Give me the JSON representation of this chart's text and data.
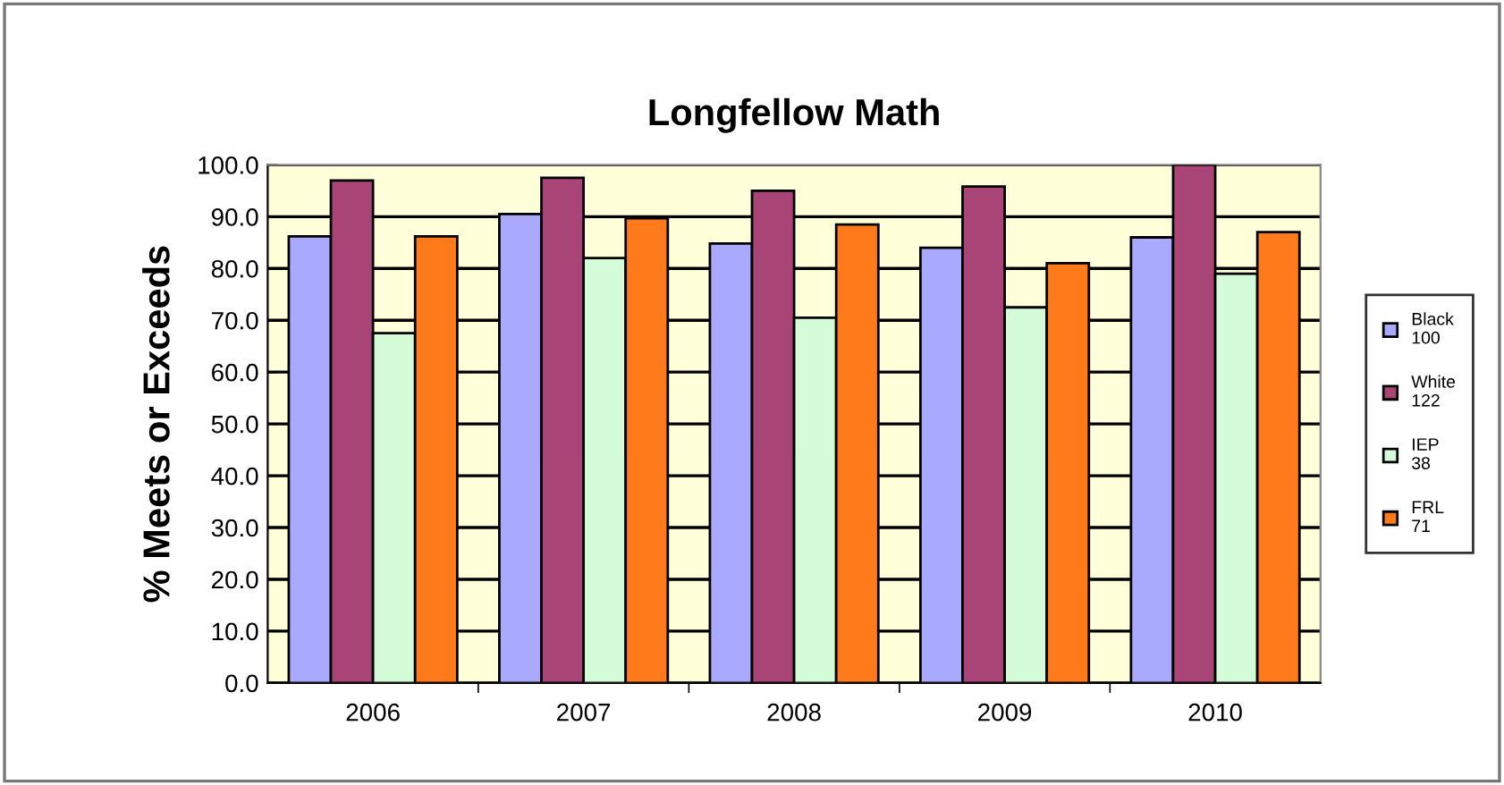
{
  "chart_data": {
    "type": "bar",
    "title": "Longfellow Math",
    "ylabel": "% Meets or Exceeds",
    "categories": [
      "2006",
      "2007",
      "2008",
      "2009",
      "2010"
    ],
    "series": [
      {
        "name": "Black\n100",
        "color": "#a9a9ff",
        "values": [
          86.2,
          90.5,
          84.8,
          84.0,
          86.0
        ]
      },
      {
        "name": "White\n122",
        "color": "#a94477",
        "values": [
          97.0,
          97.5,
          95.0,
          95.8,
          100.0
        ]
      },
      {
        "name": "IEP\n38",
        "color": "#d4fcd8",
        "values": [
          67.5,
          82.0,
          70.5,
          72.5,
          79.0
        ]
      },
      {
        "name": "FRL\n71",
        "color": "#ff7a1a",
        "values": [
          86.2,
          89.7,
          88.5,
          81.0,
          87.0
        ]
      }
    ],
    "ylim": [
      0,
      100
    ],
    "yticks": [
      {
        "value": 0,
        "label": "0.0"
      },
      {
        "value": 10,
        "label": "10.0"
      },
      {
        "value": 20,
        "label": "20.0"
      },
      {
        "value": 30,
        "label": "30.0"
      },
      {
        "value": 40,
        "label": "40.0"
      },
      {
        "value": 50,
        "label": "50.0"
      },
      {
        "value": 60,
        "label": "60.0"
      },
      {
        "value": 70,
        "label": "70.0"
      },
      {
        "value": 80,
        "label": "80.0"
      },
      {
        "value": 90,
        "label": "90.0"
      },
      {
        "value": 100,
        "label": "100.0"
      }
    ],
    "grid": "y",
    "legend": "right"
  }
}
